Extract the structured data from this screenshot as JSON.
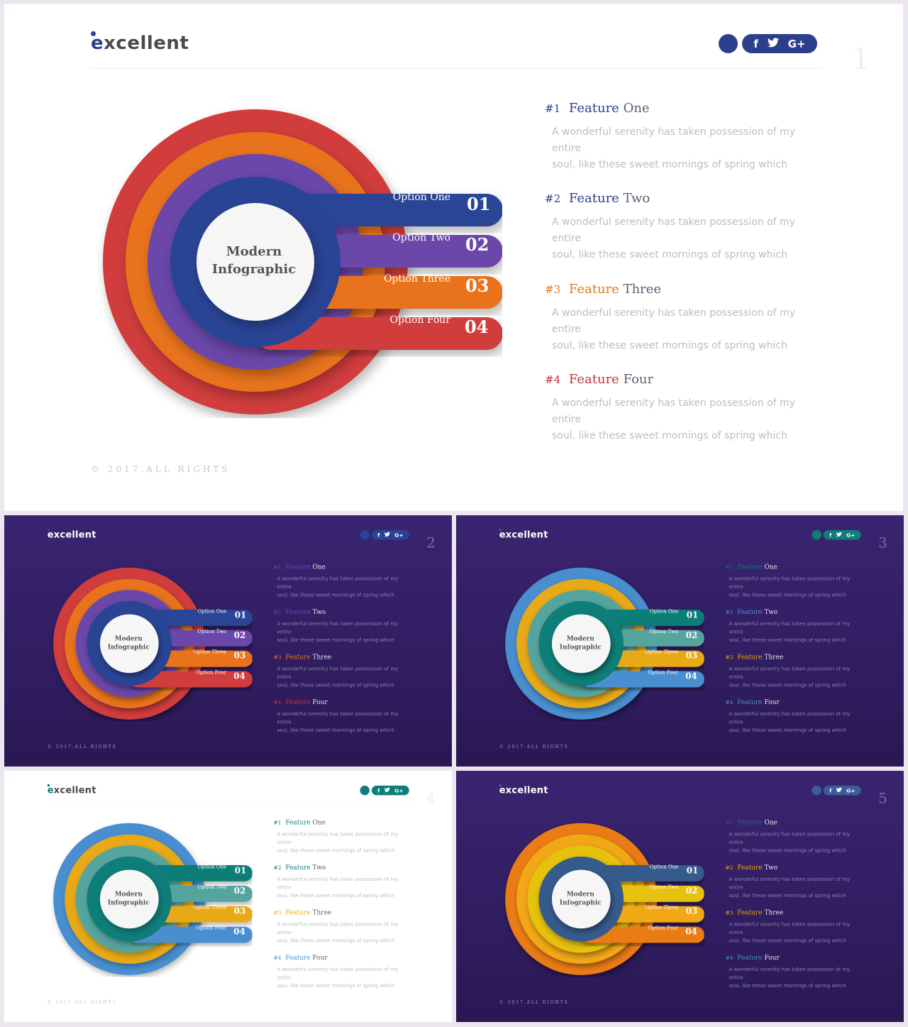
{
  "brand": {
    "logo_text": "xcellent",
    "logo_initial": "e"
  },
  "center_title": [
    "Modern",
    "Infographic"
  ],
  "options": [
    {
      "label": "Option One",
      "number": "01"
    },
    {
      "label": "Option Two",
      "number": "02"
    },
    {
      "label": "Option Three",
      "number": "03"
    },
    {
      "label": "Option Four",
      "number": "04"
    }
  ],
  "features": [
    {
      "num": "#1",
      "word": "Feature",
      "title": "One",
      "body_line1": "A wonderful serenity has taken possession of my entire",
      "body_line2": "soul, like these sweet mornings of spring which"
    },
    {
      "num": "#2",
      "word": "Feature",
      "title": "Two",
      "body_line1": "A wonderful serenity has taken possession of my entire",
      "body_line2": "soul, like these sweet mornings of spring which"
    },
    {
      "num": "#3",
      "word": "Feature",
      "title": "Three",
      "body_line1": "A wonderful serenity has taken possession of my entire",
      "body_line2": "soul, like these sweet mornings of spring which"
    },
    {
      "num": "#4",
      "word": "Feature",
      "title": "Four",
      "body_line1": "A wonderful serenity has taken possession of my entire",
      "body_line2": "soul, like these sweet mornings of spring which"
    }
  ],
  "footer": "© 2017.ALL RIGHTS",
  "social": {
    "facebook": "f",
    "twitter": "🐦",
    "google": "G+"
  },
  "slides": [
    {
      "page": "1",
      "theme": "light",
      "accent": "#2c3f8c",
      "colors": [
        "#d13c3c",
        "#e8731a",
        "#6b47a8",
        "#2a4495"
      ],
      "feature_colors": [
        "#2c3f8c",
        "#2c3f8c",
        "#e07b1a",
        "#c2333d"
      ]
    },
    {
      "page": "2",
      "theme": "dark",
      "accent": "#2a4495",
      "colors": [
        "#d13c3c",
        "#e8731a",
        "#6b47a8",
        "#2a4495"
      ],
      "feature_colors": [
        "#6b47a8",
        "#6b47a8",
        "#e07b1a",
        "#c2333d"
      ]
    },
    {
      "page": "3",
      "theme": "dark",
      "accent": "#0f7d78",
      "colors": [
        "#4a8fcf",
        "#e8a917",
        "#56a49e",
        "#0f7d78"
      ],
      "feature_colors": [
        "#0f7d78",
        "#4a8fcf",
        "#e8a917",
        "#4a8fcf"
      ]
    },
    {
      "page": "4",
      "theme": "light",
      "accent": "#0f7d78",
      "colors": [
        "#4a8fcf",
        "#e8a917",
        "#56a49e",
        "#0f7d78"
      ],
      "feature_colors": [
        "#0f7d78",
        "#0f7d78",
        "#e8a917",
        "#4a8fcf"
      ]
    },
    {
      "page": "5",
      "theme": "dark",
      "accent": "#3d5c9a",
      "colors": [
        "#ea7b12",
        "#f2a712",
        "#e6c10d",
        "#365a8c"
      ],
      "feature_colors": [
        "#365a8c",
        "#f2a712",
        "#e8a917",
        "#4a8fcf"
      ]
    }
  ]
}
